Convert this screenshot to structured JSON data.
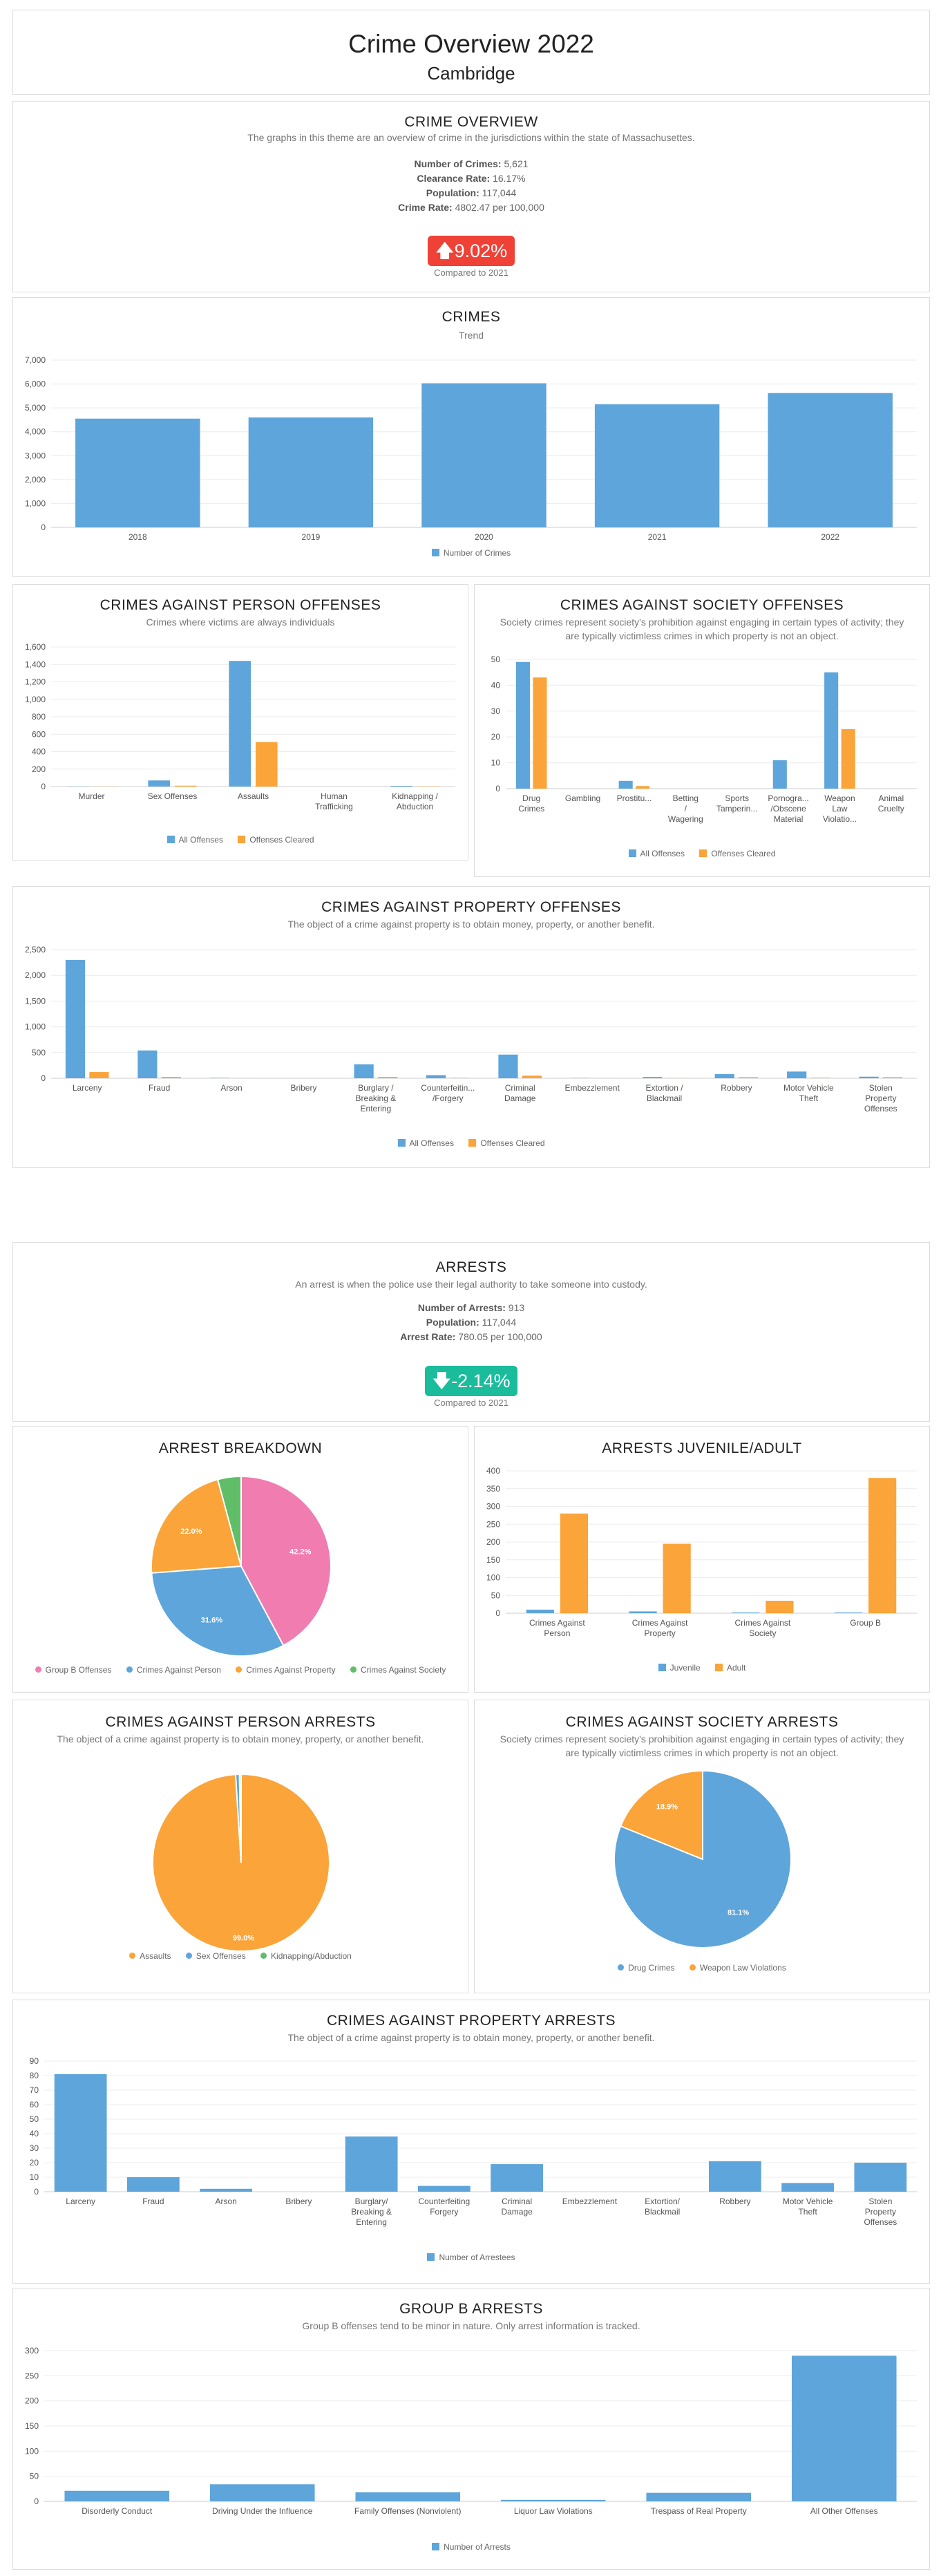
{
  "header": {
    "title": "Crime Overview 2022",
    "subtitle": "Cambridge"
  },
  "colors": {
    "blue": "#5da5da",
    "orange": "#faa43a",
    "pink": "#f17cb0",
    "green": "#60bd68",
    "up_red": "#ef4136",
    "down_green": "#1abc9c"
  },
  "crime_overview": {
    "title": "CRIME OVERVIEW",
    "description": "The graphs in this theme are an overview of crime in the jurisdictions within the state of Massachusettes.",
    "stats": [
      {
        "label": "Number of Crimes:",
        "value": "5,621"
      },
      {
        "label": "Clearance Rate:",
        "value": "16.17%"
      },
      {
        "label": "Population:",
        "value": "117,044"
      },
      {
        "label": "Crime Rate:",
        "value": "4802.47 per 100,000"
      }
    ],
    "change": "9.02%",
    "compared": "Compared to 2021"
  },
  "arrests_overview": {
    "title": "ARRESTS",
    "description": "An arrest is when the police use their legal authority to take someone into custody.",
    "stats": [
      {
        "label": "Number of Arrests:",
        "value": "913"
      },
      {
        "label": "Population:",
        "value": "117,044"
      },
      {
        "label": "Arrest Rate:",
        "value": "780.05 per 100,000"
      }
    ],
    "change": "-2.14%",
    "compared": "Compared to 2021"
  },
  "chart_data": [
    {
      "id": "crimes",
      "type": "bar",
      "title": "CRIMES",
      "subtitle": "Trend",
      "categories": [
        "2018",
        "2019",
        "2020",
        "2021",
        "2022"
      ],
      "series": [
        {
          "name": "Number of Crimes",
          "values": [
            4550,
            4600,
            6030,
            5150,
            5620
          ]
        }
      ],
      "ylim": [
        0,
        7000
      ],
      "yticks": [
        "0",
        "1,000",
        "2,000",
        "3,000",
        "4,000",
        "5,000",
        "6,000",
        "7,000"
      ]
    },
    {
      "id": "person_offenses",
      "type": "bar",
      "title": "CRIMES AGAINST PERSON OFFENSES",
      "subtitle": "Crimes where victims are always individuals",
      "categories": [
        [
          "Murder"
        ],
        [
          "Sex Offenses"
        ],
        [
          "Assaults"
        ],
        [
          "Human",
          "Trafficking"
        ],
        [
          "Kidnapping /",
          "Abduction"
        ]
      ],
      "series": [
        {
          "name": "All Offenses",
          "values": [
            2,
            70,
            1440,
            0,
            8
          ]
        },
        {
          "name": "Offenses Cleared",
          "values": [
            1,
            10,
            510,
            0,
            3
          ]
        }
      ],
      "ylim": [
        0,
        1600
      ],
      "yticks": [
        "0",
        "200",
        "400",
        "600",
        "800",
        "1,000",
        "1,200",
        "1,400",
        "1,600"
      ]
    },
    {
      "id": "society_offenses",
      "type": "bar",
      "title": "CRIMES AGAINST SOCIETY OFFENSES",
      "subtitle": "Society crimes represent society's prohibition against engaging in certain types of activity; they are typically victimless crimes in which property is not an object.",
      "categories": [
        [
          "Drug",
          "Crimes"
        ],
        [
          "Gambling"
        ],
        [
          "Prostitu..."
        ],
        [
          "Betting",
          "/",
          "Wagering"
        ],
        [
          "Sports",
          "Tamperin..."
        ],
        [
          "Pornogra...",
          "/Obscene",
          "Material"
        ],
        [
          "Weapon",
          "Law",
          "Violatio..."
        ],
        [
          "Animal",
          "Cruelty"
        ]
      ],
      "series": [
        {
          "name": "All Offenses",
          "values": [
            49,
            0,
            3,
            0,
            0,
            11,
            45,
            0
          ]
        },
        {
          "name": "Offenses Cleared",
          "values": [
            43,
            0,
            1,
            0,
            0,
            0,
            23,
            0
          ]
        }
      ],
      "ylim": [
        0,
        50
      ],
      "yticks": [
        "0",
        "10",
        "20",
        "30",
        "40",
        "50"
      ]
    },
    {
      "id": "property_offenses",
      "type": "bar",
      "title": "CRIMES AGAINST PROPERTY OFFENSES",
      "subtitle": "The object of a crime against property is to obtain money, property, or another benefit.",
      "categories": [
        [
          "Larceny"
        ],
        [
          "Fraud"
        ],
        [
          "Arson"
        ],
        [
          "Bribery"
        ],
        [
          "Burglary /",
          "Breaking &",
          "Entering"
        ],
        [
          "Counterfeitin...",
          "/Forgery"
        ],
        [
          "Criminal",
          "Damage"
        ],
        [
          "Embezzlement"
        ],
        [
          "Extortion /",
          "Blackmail"
        ],
        [
          "Robbery"
        ],
        [
          "Motor Vehicle",
          "Theft"
        ],
        [
          "Stolen",
          "Property",
          "Offenses"
        ]
      ],
      "series": [
        {
          "name": "All Offenses",
          "values": [
            2300,
            540,
            8,
            0,
            270,
            60,
            460,
            5,
            25,
            80,
            130,
            30
          ]
        },
        {
          "name": "Offenses Cleared",
          "values": [
            120,
            25,
            2,
            0,
            25,
            8,
            50,
            1,
            5,
            20,
            10,
            20
          ]
        }
      ],
      "ylim": [
        0,
        2500
      ],
      "yticks": [
        "0",
        "500",
        "1,000",
        "1,500",
        "2,000",
        "2,500"
      ]
    },
    {
      "id": "arrest_breakdown",
      "type": "pie",
      "title": "ARREST BREAKDOWN",
      "slices": [
        {
          "label": "Group B Offenses",
          "value": 42.2,
          "text": "42.2%"
        },
        {
          "label": "Crimes Against Person",
          "value": 31.6,
          "text": "31.6%"
        },
        {
          "label": "Crimes Against Property",
          "value": 22.0,
          "text": "22.0%"
        },
        {
          "label": "Crimes Against Society",
          "value": 4.2,
          "text": ""
        }
      ]
    },
    {
      "id": "juvenile_adult",
      "type": "bar",
      "title": "ARRESTS JUVENILE/ADULT",
      "categories": [
        [
          "Crimes Against",
          "Person"
        ],
        [
          "Crimes Against",
          "Property"
        ],
        [
          "Crimes Against",
          "Society"
        ],
        [
          "Group B"
        ]
      ],
      "series": [
        {
          "name": "Juvenile",
          "values": [
            10,
            5,
            2,
            2
          ]
        },
        {
          "name": "Adult",
          "values": [
            280,
            195,
            35,
            380
          ]
        }
      ],
      "ylim": [
        0,
        400
      ],
      "yticks": [
        "0",
        "50",
        "100",
        "150",
        "200",
        "250",
        "300",
        "350",
        "400"
      ]
    },
    {
      "id": "person_arrests",
      "type": "pie",
      "title": "CRIMES AGAINST PERSON ARRESTS",
      "subtitle": "The object of a crime against property is to obtain money, property, or another benefit.",
      "slices": [
        {
          "label": "Assaults",
          "value": 99.0,
          "text": "99.0%"
        },
        {
          "label": "Sex Offenses",
          "value": 0.7,
          "text": ""
        },
        {
          "label": "Kidnapping/Abduction",
          "value": 0.3,
          "text": ""
        }
      ]
    },
    {
      "id": "society_arrests",
      "type": "pie",
      "title": "CRIMES AGAINST SOCIETY ARRESTS",
      "subtitle": "Society crimes represent society's prohibition against engaging in certain types of activity; they are typically victimless crimes in which property is not an object.",
      "slices": [
        {
          "label": "Drug Crimes",
          "value": 81.1,
          "text": "81.1%"
        },
        {
          "label": "Weapon Law Violations",
          "value": 18.9,
          "text": "18.9%"
        }
      ]
    },
    {
      "id": "property_arrests",
      "type": "bar",
      "title": "CRIMES AGAINST PROPERTY ARRESTS",
      "subtitle": "The object of a crime against property is to obtain money, property, or another benefit.",
      "categories": [
        [
          "Larceny"
        ],
        [
          "Fraud"
        ],
        [
          "Arson"
        ],
        [
          "Bribery"
        ],
        [
          "Burglary/",
          "Breaking &",
          "Entering"
        ],
        [
          "Counterfeiting",
          "Forgery"
        ],
        [
          "Criminal",
          "Damage"
        ],
        [
          "Embezzlement"
        ],
        [
          "Extortion/",
          "Blackmail"
        ],
        [
          "Robbery"
        ],
        [
          "Motor Vehicle",
          "Theft"
        ],
        [
          "Stolen",
          "Property",
          "Offenses"
        ]
      ],
      "series": [
        {
          "name": "Number of Arrestees",
          "values": [
            81,
            10,
            2,
            0,
            38,
            4,
            19,
            0,
            0,
            21,
            6,
            20
          ]
        }
      ],
      "ylim": [
        0,
        90
      ],
      "yticks": [
        "0",
        "10",
        "20",
        "30",
        "40",
        "50",
        "60",
        "70",
        "80",
        "90"
      ]
    },
    {
      "id": "groupb_arrests",
      "type": "bar",
      "title": "GROUP B ARRESTS",
      "subtitle": "Group B offenses tend to be minor in nature. Only arrest information is tracked.",
      "categories": [
        [
          "Disorderly Conduct"
        ],
        [
          "Driving Under the Influence"
        ],
        [
          "Family Offenses (Nonviolent)"
        ],
        [
          "Liquor Law Violations"
        ],
        [
          "Trespass of Real Property"
        ],
        [
          "All Other Offenses"
        ]
      ],
      "series": [
        {
          "name": "Number of Arrests",
          "values": [
            21,
            34,
            18,
            3,
            17,
            290
          ]
        }
      ],
      "ylim": [
        0,
        300
      ],
      "yticks": [
        "0",
        "50",
        "100",
        "150",
        "200",
        "250",
        "300"
      ]
    }
  ]
}
